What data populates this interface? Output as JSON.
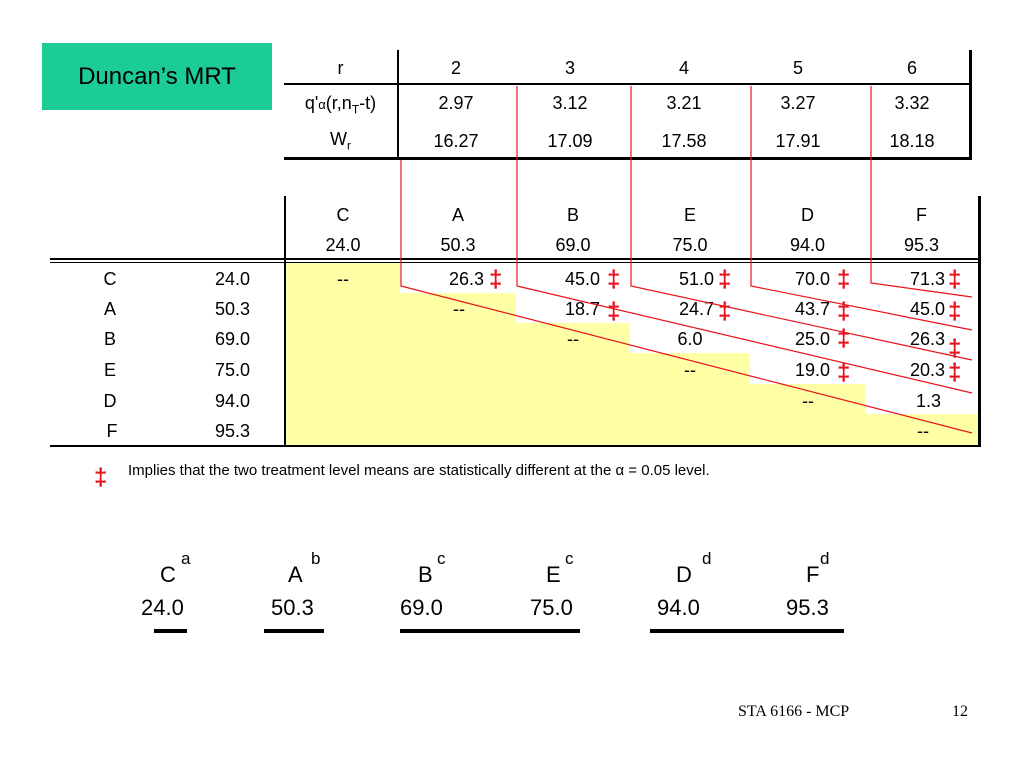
{
  "title": "Duncan’s MRT",
  "range_table": {
    "row_r_label": "r",
    "row_q_label_parts": [
      "q'",
      "α",
      "(r,n",
      "T",
      "-t)"
    ],
    "row_w_label_parts": [
      "W",
      "r"
    ],
    "r": [
      "2",
      "3",
      "4",
      "5",
      "6"
    ],
    "q": [
      "2.97",
      "3.12",
      "3.21",
      "3.27",
      "3.32"
    ],
    "w": [
      "16.27",
      "17.09",
      "17.58",
      "17.91",
      "18.18"
    ]
  },
  "matrix": {
    "col_letters": [
      "C",
      "A",
      "B",
      "E",
      "D",
      "F"
    ],
    "col_means": [
      "24.0",
      "50.3",
      "69.0",
      "75.0",
      "94.0",
      "95.3"
    ],
    "rows": [
      {
        "letter": "C",
        "mean": "24.0",
        "cells": [
          "--",
          "26.3",
          "45.0",
          "51.0",
          "70.0",
          "71.3"
        ]
      },
      {
        "letter": "A",
        "mean": "50.3",
        "cells": [
          "",
          "--",
          "18.7",
          "24.7",
          "43.7",
          "45.0"
        ]
      },
      {
        "letter": "B",
        "mean": "69.0",
        "cells": [
          "",
          "",
          "--",
          "6.0",
          "25.0",
          "26.3"
        ]
      },
      {
        "letter": "E",
        "mean": "75.0",
        "cells": [
          "",
          "",
          "",
          "--",
          "19.0",
          "20.3"
        ]
      },
      {
        "letter": "D",
        "mean": "94.0",
        "cells": [
          "",
          "",
          "",
          "",
          "--",
          "1.3"
        ]
      },
      {
        "letter": "F",
        "mean": "95.3",
        "cells": [
          "",
          "",
          "",
          "",
          "",
          "--"
        ]
      }
    ],
    "significance_mark": "‡",
    "accent_color": "#e8121c",
    "highlight_color": "#ffffa6"
  },
  "footnote": {
    "mark": "‡",
    "text_before": "Implies that the two treatment level means are statistically  different at the ",
    "alpha": "α",
    "text_after": " = 0.05 level."
  },
  "groups": [
    {
      "letter": "C",
      "sup": "a",
      "mean": "24.0"
    },
    {
      "letter": "A",
      "sup": "b",
      "mean": "50.3"
    },
    {
      "letter": "B",
      "sup": "c",
      "mean": "69.0"
    },
    {
      "letter": "E",
      "sup": "c",
      "mean": "75.0"
    },
    {
      "letter": "D",
      "sup": "d",
      "mean": "94.0"
    },
    {
      "letter": "F",
      "sup": "d",
      "mean": "95.3"
    }
  ],
  "footer": {
    "course": "STA 6166 - MCP",
    "page": "12"
  }
}
